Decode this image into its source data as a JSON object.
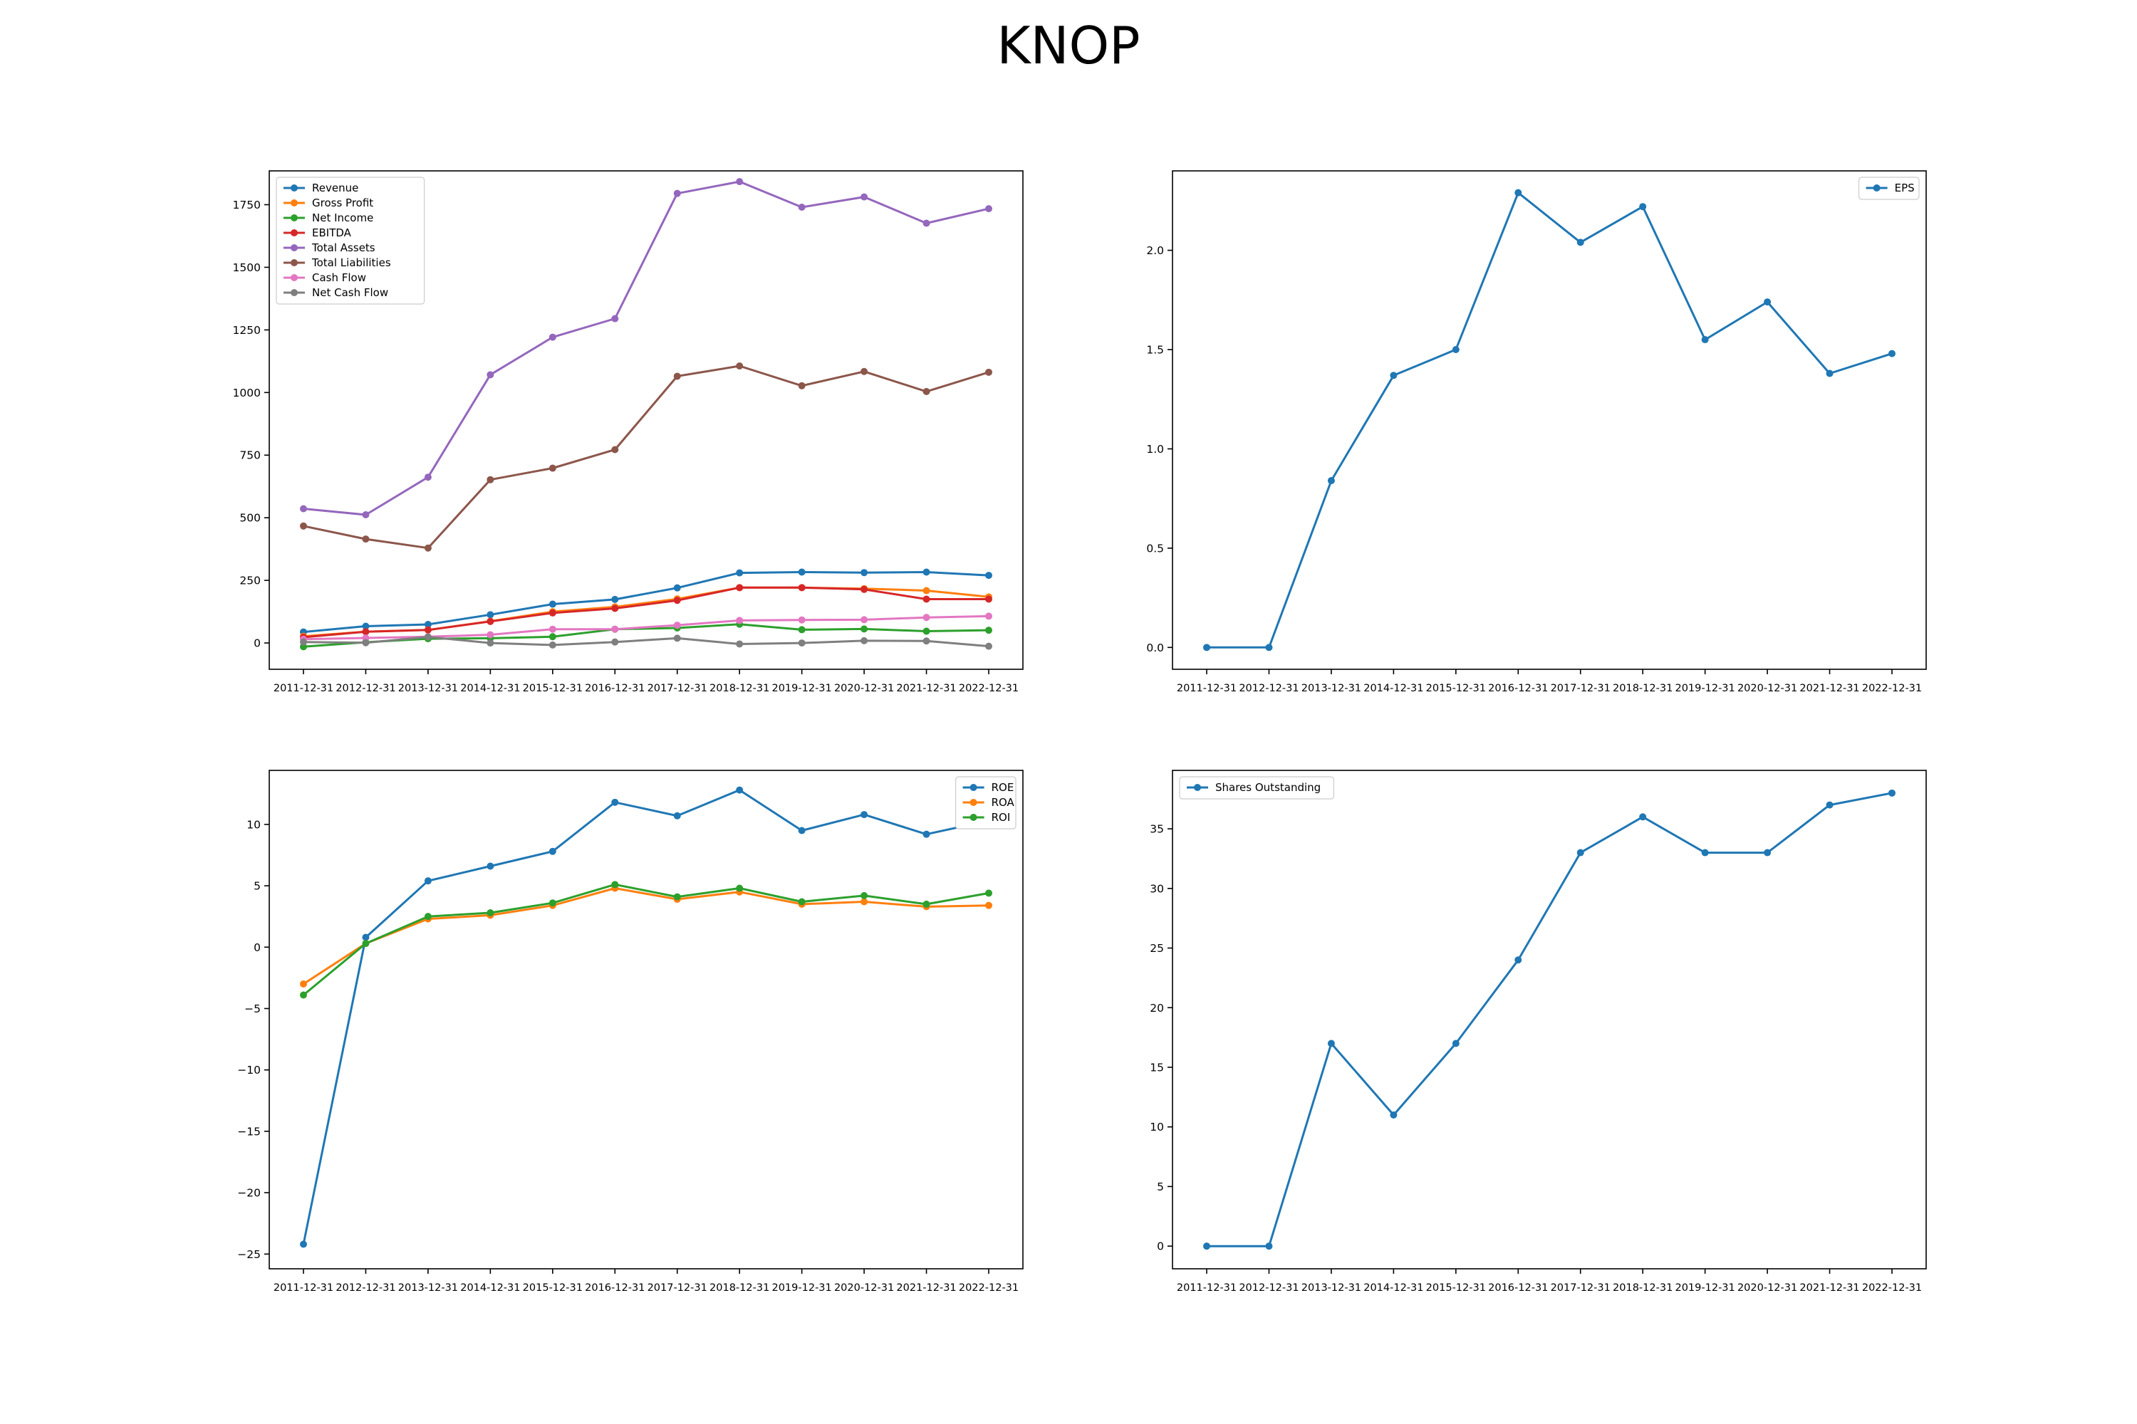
{
  "title": "KNOP",
  "x_labels": [
    "2011-12-31",
    "2012-12-31",
    "2013-12-31",
    "2014-12-31",
    "2015-12-31",
    "2016-12-31",
    "2017-12-31",
    "2018-12-31",
    "2019-12-31",
    "2020-12-31",
    "2021-12-31",
    "2022-12-31"
  ],
  "chart_data": [
    {
      "type": "line",
      "legend": "top-left",
      "grid": false,
      "ylim": [
        -105,
        1885
      ],
      "yticks": [
        0,
        250,
        500,
        750,
        1000,
        1250,
        1500,
        1750
      ],
      "series": [
        {
          "name": "Revenue",
          "color": "#1f77b4",
          "values": [
            44,
            67,
            74,
            113,
            155,
            174,
            220,
            280,
            283,
            281,
            283,
            270
          ]
        },
        {
          "name": "Gross Profit",
          "color": "#ff7f0e",
          "values": [
            27,
            45,
            52,
            87,
            125,
            144,
            176,
            221,
            221,
            217,
            209,
            184
          ]
        },
        {
          "name": "Net Income",
          "color": "#2ca02c",
          "values": [
            -15,
            3,
            17,
            19,
            25,
            55,
            60,
            75,
            53,
            56,
            47,
            51
          ]
        },
        {
          "name": "EBITDA",
          "color": "#d62728",
          "values": [
            23,
            45,
            52,
            86,
            120,
            138,
            170,
            221,
            221,
            214,
            175,
            175
          ]
        },
        {
          "name": "Total Assets",
          "color": "#9467bd",
          "values": [
            536,
            512,
            662,
            1071,
            1221,
            1295,
            1795,
            1842,
            1740,
            1781,
            1676,
            1734
          ]
        },
        {
          "name": "Total Liabilities",
          "color": "#8c564b",
          "values": [
            467,
            415,
            379,
            652,
            698,
            772,
            1065,
            1106,
            1027,
            1084,
            1004,
            1081
          ]
        },
        {
          "name": "Cash Flow",
          "color": "#e377c2",
          "values": [
            15,
            20,
            25,
            33,
            55,
            55,
            71,
            90,
            92,
            93,
            102,
            107
          ]
        },
        {
          "name": "Net Cash Flow",
          "color": "#7f7f7f",
          "values": [
            4,
            1,
            24,
            0,
            -8,
            4,
            19,
            -4,
            0,
            9,
            8,
            -13
          ]
        }
      ]
    },
    {
      "type": "line",
      "legend": "top-right",
      "grid": false,
      "ylim": [
        -0.11,
        2.4
      ],
      "yticks": [
        0.0,
        0.5,
        1.0,
        1.5,
        2.0
      ],
      "tick_labels": [
        "0.0",
        "0.5",
        "1.0",
        "1.5",
        "2.0"
      ],
      "series": [
        {
          "name": "EPS",
          "color": "#1f77b4",
          "values": [
            0,
            0,
            0.84,
            1.37,
            1.5,
            2.29,
            2.04,
            2.22,
            1.55,
            1.74,
            1.38,
            1.48
          ]
        }
      ]
    },
    {
      "type": "line",
      "legend": "top-right",
      "grid": false,
      "ylim": [
        -26.2,
        14.4
      ],
      "yticks": [
        -25,
        -20,
        -15,
        -10,
        -5,
        0,
        5,
        10
      ],
      "tick_labels": [
        "−25",
        "−20",
        "−15",
        "−10",
        "−5",
        "0",
        "5",
        "10"
      ],
      "series": [
        {
          "name": "ROE",
          "color": "#1f77b4",
          "values": [
            -24.2,
            0.8,
            5.4,
            6.6,
            7.8,
            11.8,
            10.7,
            12.8,
            9.5,
            10.8,
            9.2,
            10.3
          ]
        },
        {
          "name": "ROA",
          "color": "#ff7f0e",
          "values": [
            -3.0,
            0.3,
            2.3,
            2.6,
            3.4,
            4.8,
            3.9,
            4.5,
            3.5,
            3.7,
            3.3,
            3.4
          ]
        },
        {
          "name": "ROI",
          "color": "#2ca02c",
          "values": [
            -3.9,
            0.3,
            2.5,
            2.8,
            3.6,
            5.1,
            4.1,
            4.8,
            3.7,
            4.2,
            3.5,
            4.4
          ]
        }
      ]
    },
    {
      "type": "line",
      "legend": "top-left",
      "grid": false,
      "ylim": [
        -1.9,
        39.9
      ],
      "yticks": [
        0,
        5,
        10,
        15,
        20,
        25,
        30,
        35
      ],
      "series": [
        {
          "name": "Shares Outstanding",
          "color": "#1f77b4",
          "values": [
            0,
            0,
            17,
            11,
            17,
            24,
            33,
            36,
            33,
            33,
            37,
            38
          ]
        }
      ]
    }
  ]
}
